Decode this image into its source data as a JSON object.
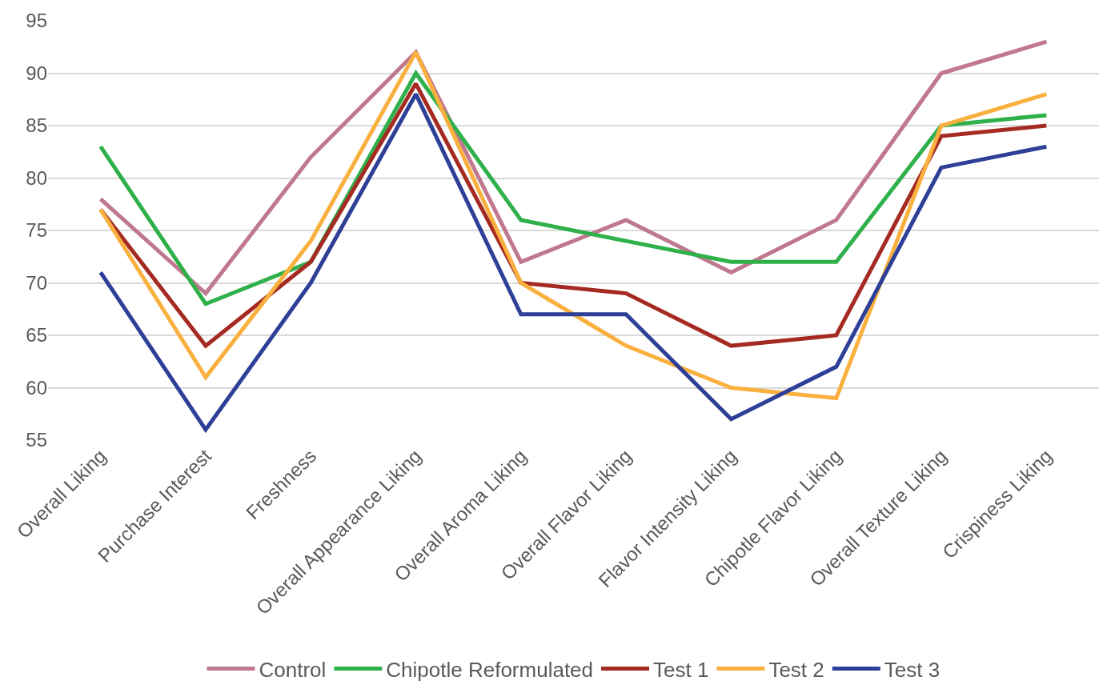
{
  "chart_data": {
    "type": "line",
    "categories": [
      "Overall Liking",
      "Purchase Interest",
      "Freshness",
      "Overall Appearance Liking",
      "Overall Aroma Liking",
      "Overall Flavor Liking",
      "Flavor Intensity Liking",
      "Chipotle Flavor Liking",
      "Overall Texture Liking",
      "Crispiness Liking"
    ],
    "series": [
      {
        "name": "Control",
        "color": "#c0788f",
        "values": [
          78,
          69,
          82,
          92,
          72,
          76,
          71,
          76,
          90,
          93
        ]
      },
      {
        "name": "Chipotle Reformulated",
        "color": "#2fb04a",
        "values": [
          83,
          68,
          72,
          90,
          76,
          74,
          72,
          72,
          85,
          86
        ]
      },
      {
        "name": "Test 1",
        "color": "#a52a22",
        "values": [
          77,
          64,
          72,
          89,
          70,
          69,
          64,
          65,
          84,
          85
        ]
      },
      {
        "name": "Test 2",
        "color": "#f9b03f",
        "values": [
          77,
          61,
          74,
          92,
          70,
          64,
          60,
          59,
          85,
          88
        ]
      },
      {
        "name": "Test 3",
        "color": "#2e3f98",
        "values": [
          71,
          56,
          70,
          88,
          67,
          67,
          57,
          62,
          81,
          83
        ]
      }
    ],
    "ylim": [
      55,
      95
    ],
    "yticks": [
      55,
      60,
      65,
      70,
      75,
      80,
      85,
      90,
      95
    ],
    "grid": "y",
    "legend": "bottom",
    "marker": "none",
    "line_style": "solid"
  }
}
